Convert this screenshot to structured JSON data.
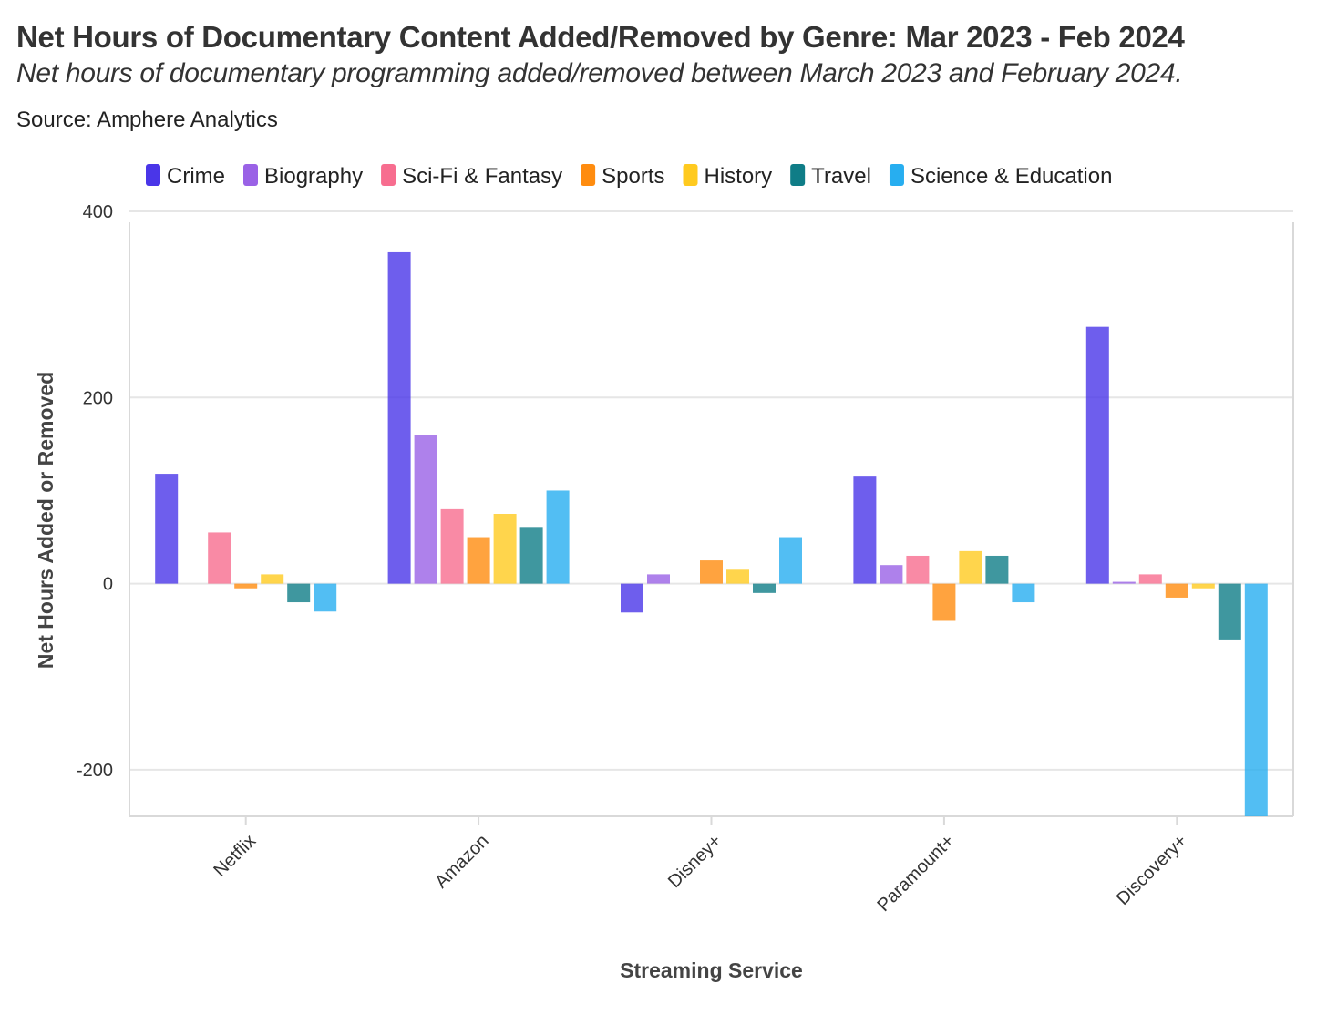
{
  "header": {
    "title": "Net Hours of Documentary Content Added/Removed by Genre: Mar 2023 - Feb 2024",
    "subtitle": "Net hours of documentary programming added/removed between March 2023 and February 2024.",
    "source": "Source: Amphere Analytics"
  },
  "colors": {
    "Crime": "#4a36e8",
    "Biography": "#9a62e6",
    "Sci-Fi & Fantasy": "#f76d8f",
    "Sports": "#ff8c0f",
    "History": "#ffca1f",
    "Travel": "#0f7d87",
    "Science & Education": "#27aef0",
    "grid": "#e6e6e6",
    "axis": "#d9d9d9",
    "text": "#333333"
  },
  "chart_data": {
    "type": "bar",
    "title": "Net Hours of Documentary Content Added/Removed by Genre: Mar 2023 - Feb 2024",
    "xlabel": "Streaming Service",
    "ylabel": "Net Hours Added or Removed",
    "ylim": [
      -250,
      400
    ],
    "yticks": [
      -200,
      0,
      200,
      400
    ],
    "legend_position": "top",
    "grid": true,
    "categories": [
      "Netflix",
      "Amazon",
      "Disney+",
      "Paramount+",
      "Discovery+"
    ],
    "series": [
      {
        "name": "Crime",
        "values": [
          118,
          356,
          -31,
          115,
          276
        ]
      },
      {
        "name": "Biography",
        "values": [
          0,
          160,
          10,
          20,
          2
        ]
      },
      {
        "name": "Sci-Fi & Fantasy",
        "values": [
          55,
          80,
          0,
          30,
          10
        ]
      },
      {
        "name": "Sports",
        "values": [
          -5,
          50,
          25,
          -40,
          -15
        ]
      },
      {
        "name": "History",
        "values": [
          10,
          75,
          15,
          35,
          -5
        ]
      },
      {
        "name": "Travel",
        "values": [
          -20,
          60,
          -10,
          30,
          -60
        ]
      },
      {
        "name": "Science & Education",
        "values": [
          -30,
          100,
          50,
          -20,
          -250
        ]
      }
    ]
  }
}
